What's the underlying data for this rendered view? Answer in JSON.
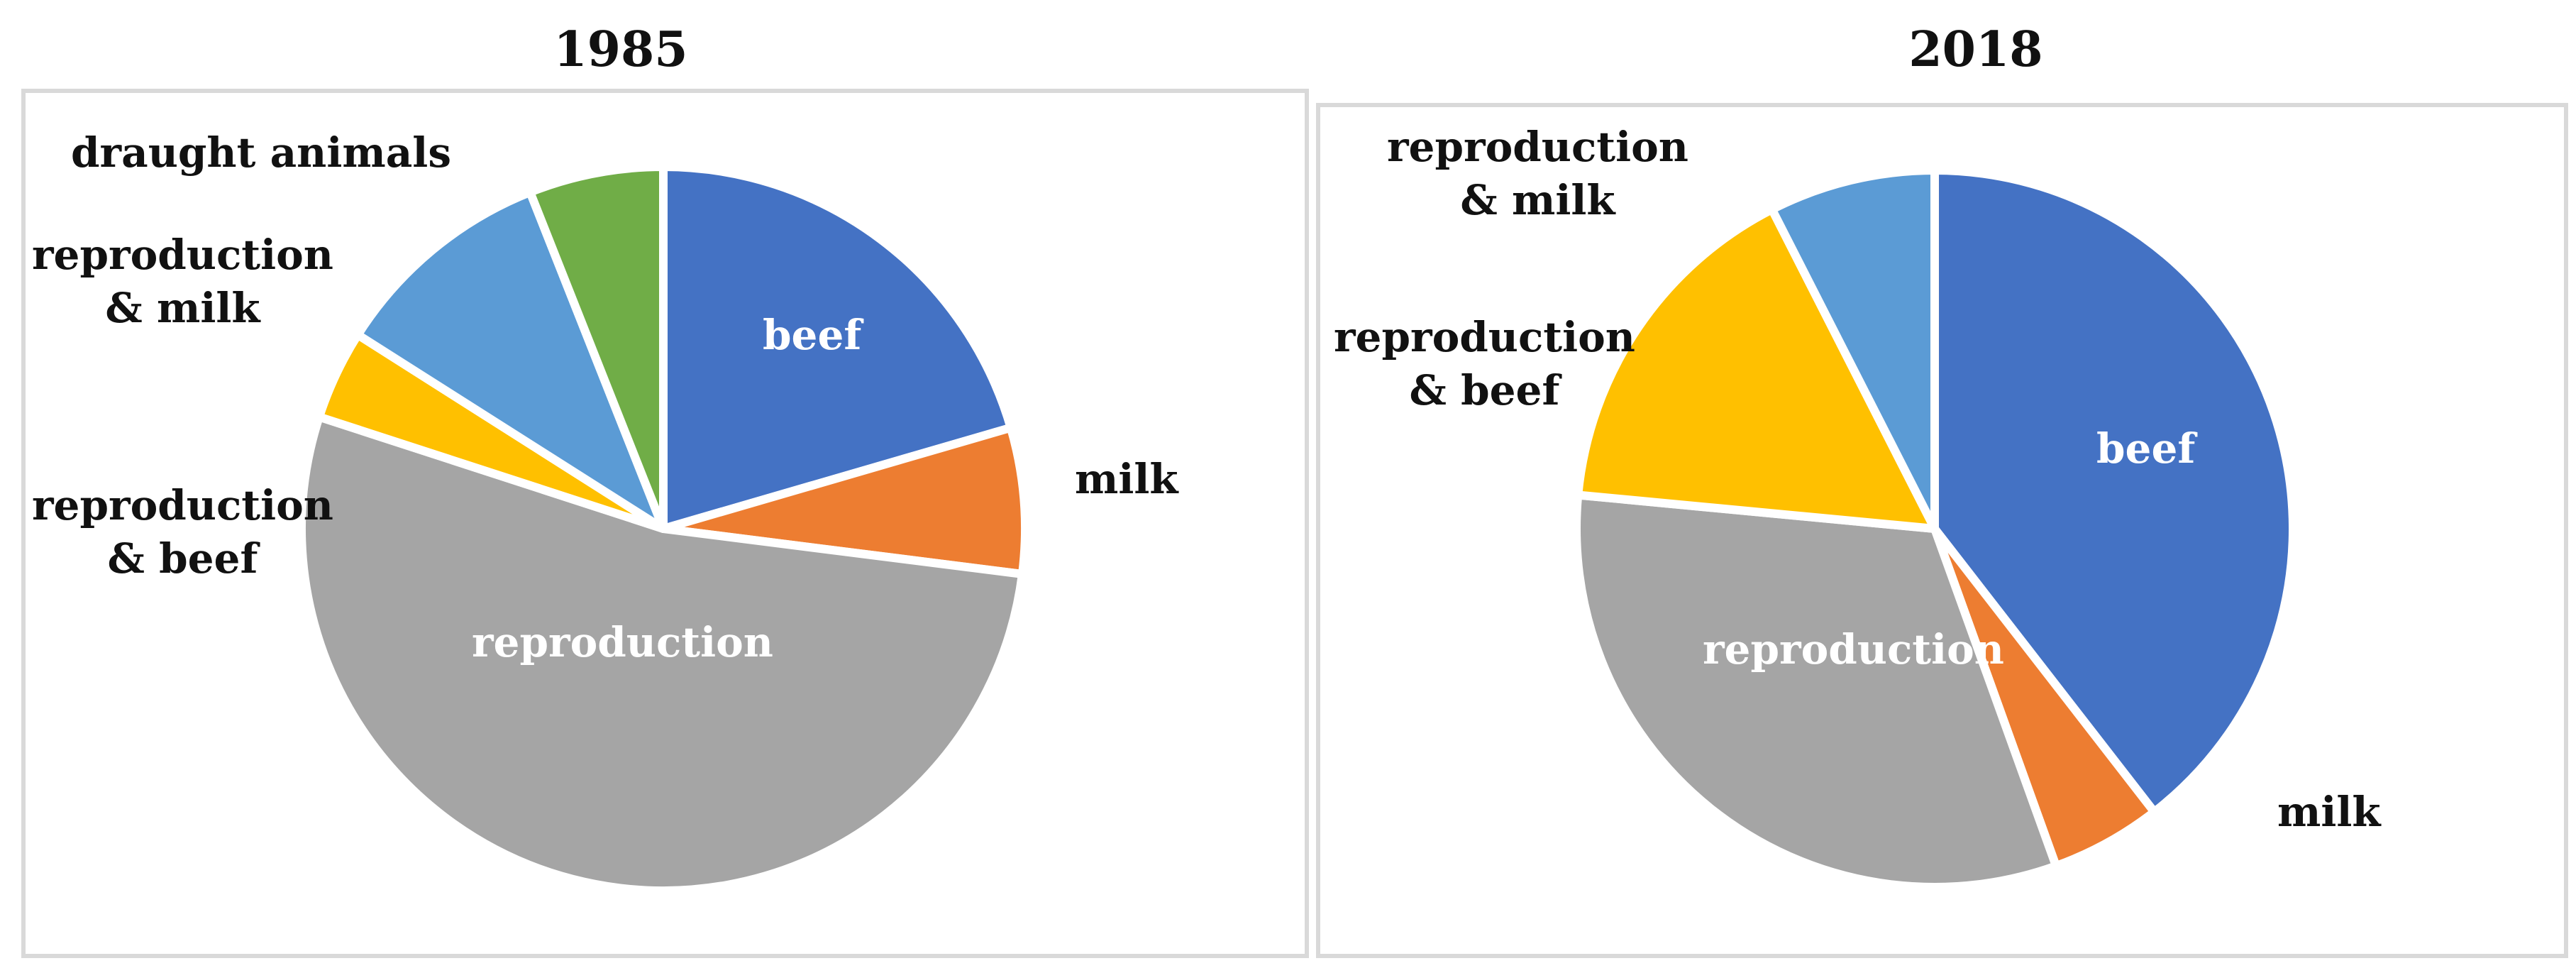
{
  "chart_data": [
    {
      "type": "pie",
      "title": "1985",
      "slices": [
        {
          "label": "beef",
          "value": 20.5,
          "color": "#4472C4"
        },
        {
          "label": "milk",
          "value": 6.5,
          "color": "#ED7D31"
        },
        {
          "label": "reproduction",
          "value": 53.0,
          "color": "#A5A5A5"
        },
        {
          "label": "reproduction\n& beef",
          "value": 4.0,
          "color": "#FFC000"
        },
        {
          "label": "reproduction\n& milk",
          "value": 10.0,
          "color": "#5B9BD5"
        },
        {
          "label": "draught animals",
          "value": 6.0,
          "color": "#70AD47"
        }
      ]
    },
    {
      "type": "pie",
      "title": "2018",
      "slices": [
        {
          "label": "beef",
          "value": 39.5,
          "color": "#4472C4"
        },
        {
          "label": "milk",
          "value": 5.0,
          "color": "#ED7D31"
        },
        {
          "label": "reproduction",
          "value": 32.0,
          "color": "#A5A5A5"
        },
        {
          "label": "reproduction\n& beef",
          "value": 16.0,
          "color": "#FFC000"
        },
        {
          "label": "reproduction\n& milk",
          "value": 7.5,
          "color": "#5B9BD5"
        }
      ]
    }
  ]
}
